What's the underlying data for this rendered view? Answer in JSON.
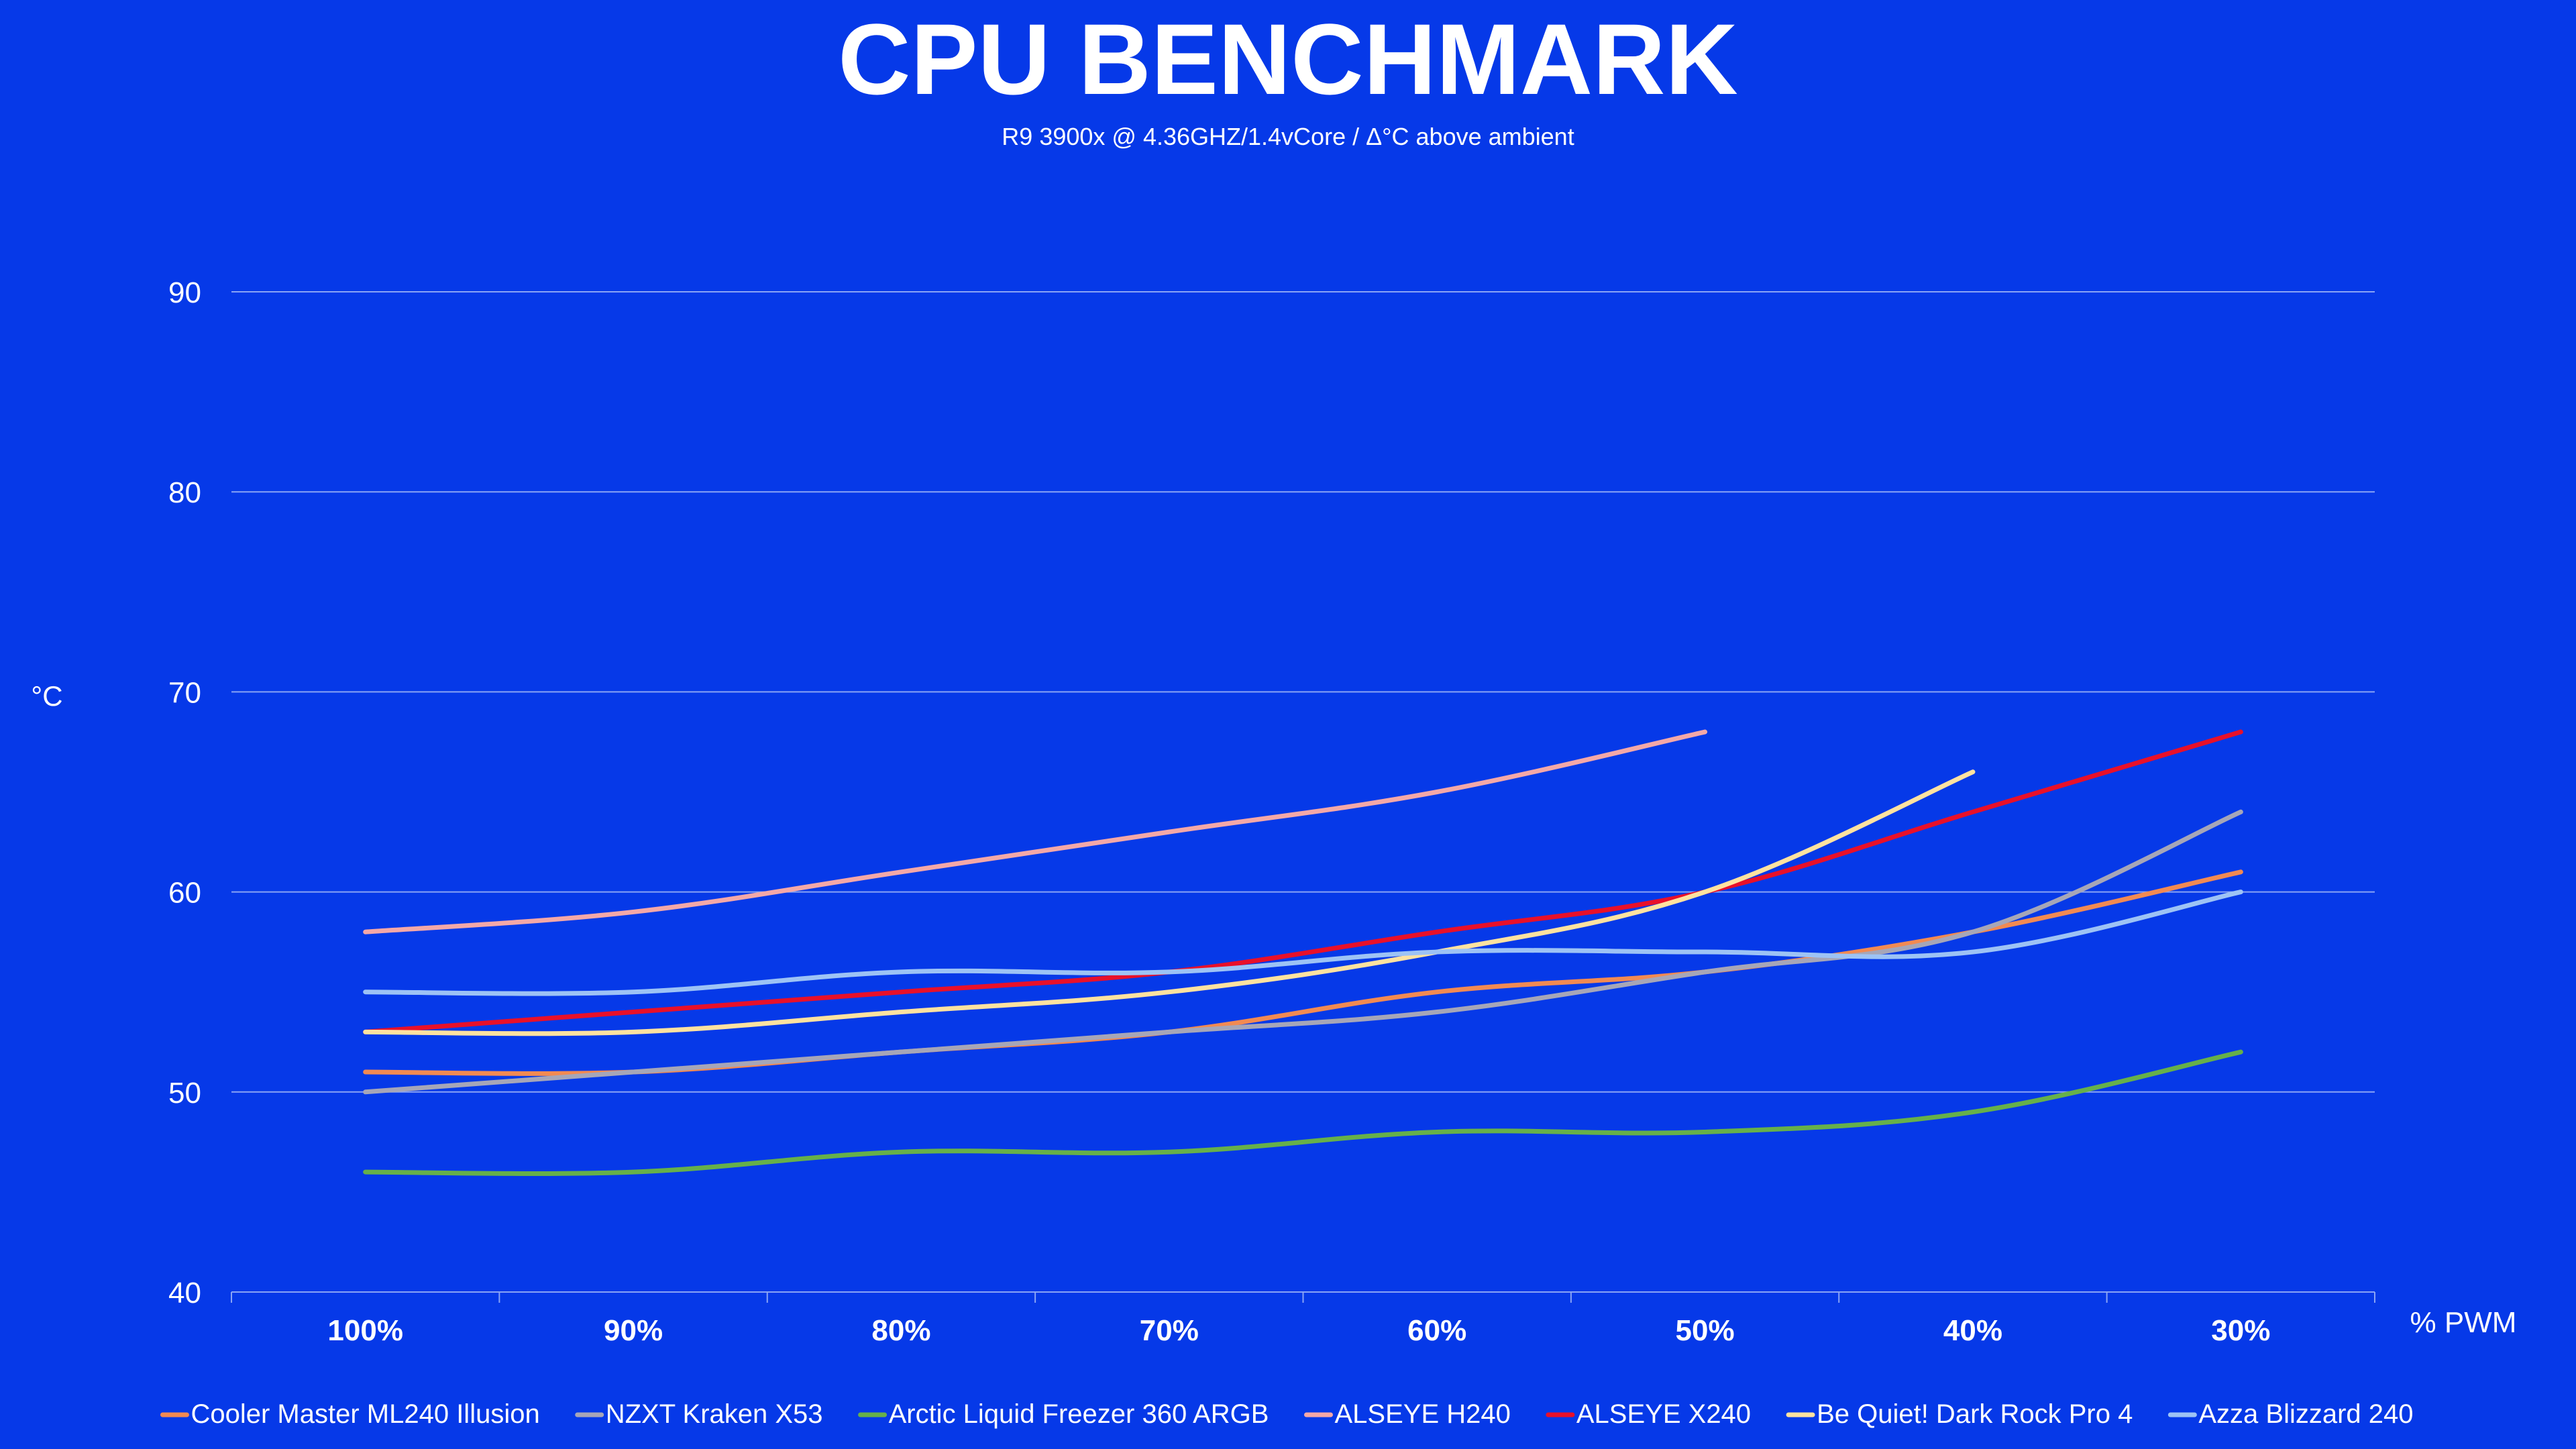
{
  "chart_data": {
    "type": "line",
    "title": "CPU BENCHMARK",
    "subtitle": "R9 3900x @ 4.36GHZ/1.4vCore  /  Δ°C above ambient",
    "ylabel": "°C",
    "xlabel": "% PWM",
    "categories": [
      "100%",
      "90%",
      "80%",
      "70%",
      "60%",
      "50%",
      "40%",
      "30%"
    ],
    "ylim": [
      40,
      90
    ],
    "yticks": [
      40,
      50,
      60,
      70,
      80,
      90
    ],
    "grid": true,
    "legend_position": "bottom",
    "series": [
      {
        "name": "Cooler Master ML240 Illusion",
        "color": "#f28a52",
        "values": [
          51,
          51,
          52,
          53,
          55,
          56,
          58,
          61
        ]
      },
      {
        "name": "NZXT Kraken X53",
        "color": "#a6a6b8",
        "values": [
          50,
          51,
          52,
          53,
          54,
          56,
          58,
          64
        ]
      },
      {
        "name": "Arctic Liquid Freezer 360 ARGB",
        "color": "#66b04a",
        "values": [
          46,
          46,
          47,
          47,
          48,
          48,
          49,
          52
        ]
      },
      {
        "name": "ALSEYE H240",
        "color": "#f4a8a8",
        "values": [
          58,
          59,
          61,
          63,
          65,
          68,
          null,
          null
        ]
      },
      {
        "name": "ALSEYE X240",
        "color": "#e8102a",
        "values": [
          53,
          54,
          55,
          56,
          58,
          60,
          64,
          68
        ]
      },
      {
        "name": "Be Quiet! Dark Rock Pro 4",
        "color": "#ffe2a0",
        "values": [
          53,
          53,
          54,
          55,
          57,
          60,
          66,
          null
        ]
      },
      {
        "name": "Azza Blizzard 240",
        "color": "#9dc3f5",
        "values": [
          55,
          55,
          56,
          56,
          57,
          57,
          57,
          60
        ]
      }
    ]
  }
}
